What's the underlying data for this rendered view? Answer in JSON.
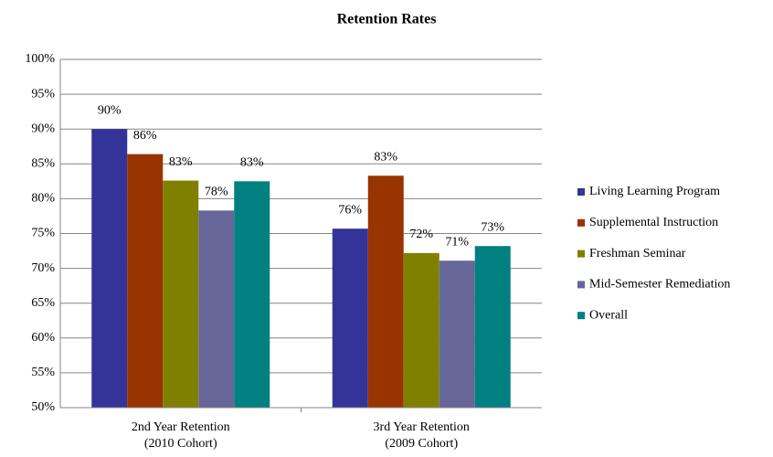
{
  "chart_data": {
    "type": "bar",
    "title": "Retention Rates",
    "categories": [
      [
        "2nd Year Retention",
        "(2010 Cohort)"
      ],
      [
        "3rd Year Retention",
        "(2009 Cohort)"
      ]
    ],
    "series": [
      {
        "name": "Living Learning Program",
        "color": "#333399",
        "values": [
          90.0,
          75.7
        ],
        "value_labels": [
          "90%",
          "76%"
        ]
      },
      {
        "name": "Supplemental Instruction",
        "color": "#993300",
        "values": [
          86.4,
          83.3
        ],
        "value_labels": [
          "86%",
          "83%"
        ]
      },
      {
        "name": "Freshman Seminar",
        "color": "#808000",
        "values": [
          82.6,
          72.2
        ],
        "value_labels": [
          "83%",
          "72%"
        ]
      },
      {
        "name": "Mid-Semester Remediation",
        "color": "#666699",
        "values": [
          78.3,
          71.1
        ],
        "value_labels": [
          "78%",
          "71%"
        ]
      },
      {
        "name": "Overall",
        "color": "#008080",
        "values": [
          82.5,
          73.2
        ],
        "value_labels": [
          "83%",
          "73%"
        ]
      }
    ],
    "ylim": [
      50,
      100
    ],
    "yticks": [
      {
        "value": 50,
        "label": "50%"
      },
      {
        "value": 55,
        "label": "55%"
      },
      {
        "value": 60,
        "label": "60%"
      },
      {
        "value": 65,
        "label": "65%"
      },
      {
        "value": 70,
        "label": "70%"
      },
      {
        "value": 75,
        "label": "75%"
      },
      {
        "value": 80,
        "label": "80%"
      },
      {
        "value": 85,
        "label": "85%"
      },
      {
        "value": 90,
        "label": "90%"
      },
      {
        "value": 95,
        "label": "95%"
      },
      {
        "value": 100,
        "label": "100%"
      }
    ],
    "grid": true,
    "legend": "right"
  }
}
